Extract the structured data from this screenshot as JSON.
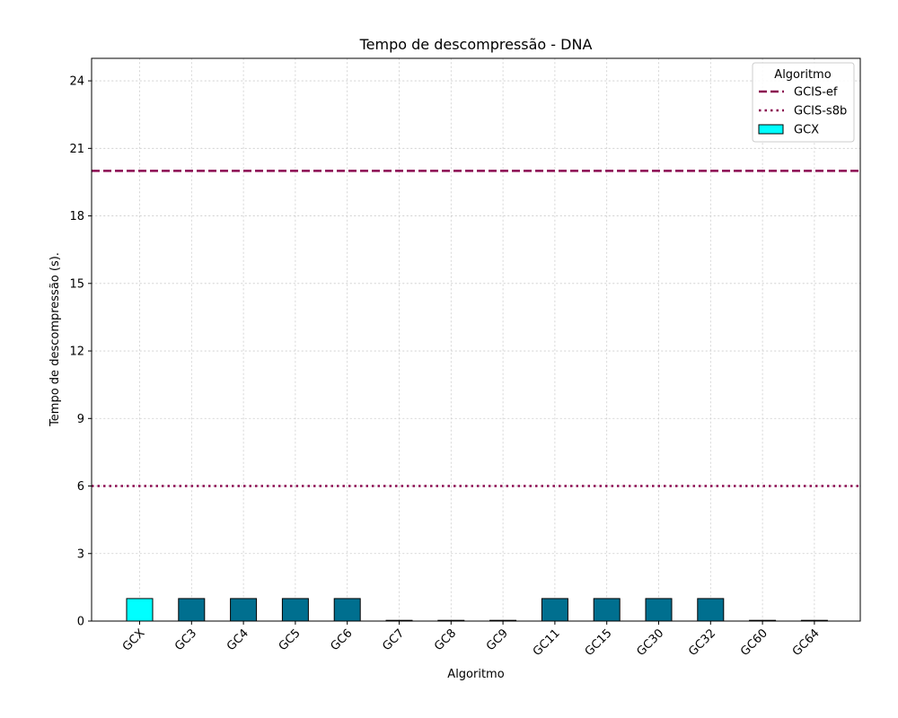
{
  "chart_data": {
    "type": "bar",
    "title": "Tempo de descompressão -  DNA",
    "xlabel": "Algoritmo",
    "ylabel": "Tempo de descompressão (s).",
    "ylim": [
      0,
      25
    ],
    "yticks": [
      0,
      3,
      6,
      9,
      12,
      15,
      18,
      21,
      24
    ],
    "grid": true,
    "categories": [
      "GCX",
      "GC3",
      "GC4",
      "GC5",
      "GC6",
      "GC7",
      "GC8",
      "GC9",
      "GC11",
      "GC15",
      "GC30",
      "GC32",
      "GC60",
      "GC64"
    ],
    "values": [
      1,
      1,
      1,
      1,
      1,
      0,
      0,
      0,
      1,
      1,
      1,
      1,
      0,
      0
    ],
    "bar_colors": [
      "#00ffff",
      "#006f8f",
      "#006f8f",
      "#006f8f",
      "#006f8f",
      "#006f8f",
      "#006f8f",
      "#006f8f",
      "#006f8f",
      "#006f8f",
      "#006f8f",
      "#006f8f",
      "#006f8f",
      "#006f8f"
    ],
    "reference_lines": [
      {
        "name": "GCIS-ef",
        "value": 20,
        "style": "dashed",
        "color": "#8b0a50"
      },
      {
        "name": "GCIS-s8b",
        "value": 6,
        "style": "dotted",
        "color": "#8b0a50"
      }
    ],
    "legend": {
      "title": "Algoritmo",
      "placement": "top-right",
      "entries": [
        {
          "label": "GCIS-ef",
          "kind": "dashed-line",
          "color": "#8b0a50"
        },
        {
          "label": "GCIS-s8b",
          "kind": "dotted-line",
          "color": "#8b0a50"
        },
        {
          "label": "GCX",
          "kind": "patch",
          "color": "#00ffff"
        }
      ]
    }
  }
}
